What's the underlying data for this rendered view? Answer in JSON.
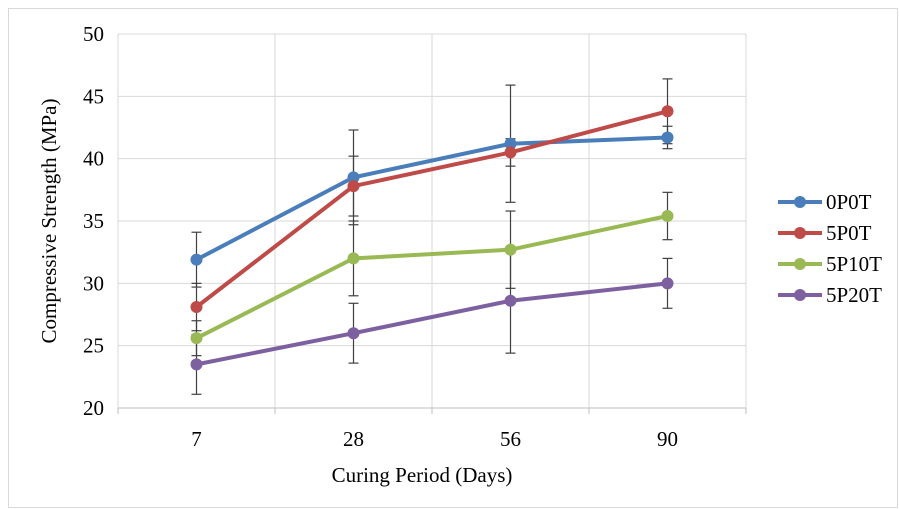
{
  "chart_data": {
    "type": "line",
    "title": "",
    "xlabel": "Curing Period (Days)",
    "ylabel": "Compressive Strength (MPa)",
    "categories": [
      "7",
      "28",
      "56",
      "90"
    ],
    "ylim": [
      20,
      50
    ],
    "yticks": [
      "20",
      "25",
      "30",
      "35",
      "40",
      "45",
      "50"
    ],
    "grid": true,
    "legend_position": "right",
    "series": [
      {
        "name": "0P0T",
        "color": "#4a7ebb",
        "values": [
          31.9,
          38.5,
          41.2,
          41.7
        ],
        "error": [
          2.2,
          3.8,
          4.7,
          0.9
        ]
      },
      {
        "name": "5P0T",
        "color": "#be4b48",
        "values": [
          28.1,
          37.8,
          40.5,
          43.8
        ],
        "error": [
          1.9,
          2.4,
          1.1,
          2.6
        ]
      },
      {
        "name": "5P10T",
        "color": "#98b954",
        "values": [
          25.6,
          32.0,
          32.7,
          35.4
        ],
        "error": [
          1.4,
          3.0,
          3.1,
          1.9
        ]
      },
      {
        "name": "5P20T",
        "color": "#7d60a0",
        "values": [
          23.5,
          26.0,
          28.6,
          30.0
        ],
        "error": [
          2.4,
          2.4,
          4.2,
          2.0
        ]
      }
    ]
  }
}
